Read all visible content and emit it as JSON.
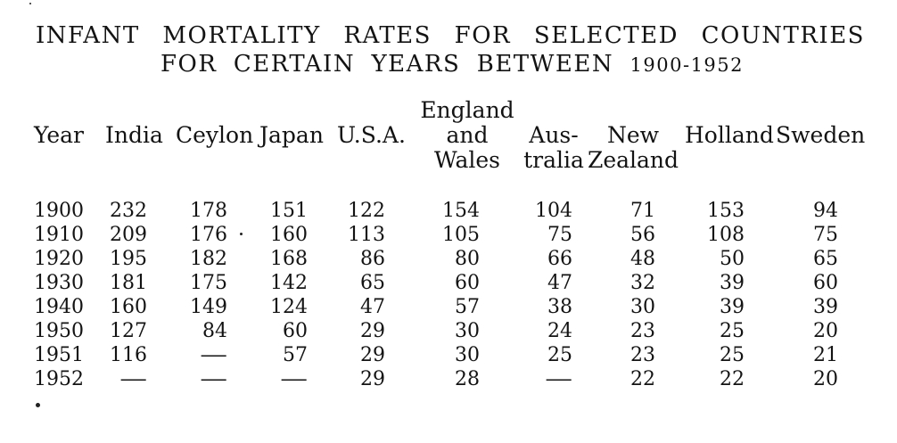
{
  "document": {
    "title_line1": "INFANT MORTALITY RATES FOR SELECTED COUNTRIES",
    "title_line2": "FOR CERTAIN YEARS BETWEEN",
    "title_years": "1900-1952"
  },
  "table": {
    "columns": [
      {
        "lines": [
          "Year"
        ]
      },
      {
        "lines": [
          "India"
        ]
      },
      {
        "lines": [
          "Ceylon"
        ]
      },
      {
        "lines": [
          "Japan"
        ]
      },
      {
        "lines": [
          "U.S.A."
        ]
      },
      {
        "lines": [
          "England",
          "and",
          "Wales"
        ]
      },
      {
        "lines": [
          "Aus-",
          "tralia"
        ]
      },
      {
        "lines": [
          "New",
          "Zealand"
        ]
      },
      {
        "lines": [
          "Holland"
        ]
      },
      {
        "lines": [
          "Sweden"
        ]
      }
    ],
    "rows": [
      [
        "1900",
        "232",
        "178",
        "151",
        "122",
        "154",
        "104",
        "71",
        "153",
        "94"
      ],
      [
        "1910",
        "209",
        "176",
        "160",
        "113",
        "105",
        "75",
        "56",
        "108",
        "75"
      ],
      [
        "1920",
        "195",
        "182",
        "168",
        "86",
        "80",
        "66",
        "48",
        "50",
        "65"
      ],
      [
        "1930",
        "181",
        "175",
        "142",
        "65",
        "60",
        "47",
        "32",
        "39",
        "60"
      ],
      [
        "1940",
        "160",
        "149",
        "124",
        "47",
        "57",
        "38",
        "30",
        "39",
        "39"
      ],
      [
        "1950",
        "127",
        "84",
        "60",
        "29",
        "30",
        "24",
        "23",
        "25",
        "20"
      ],
      [
        "1951",
        "116",
        "—",
        "57",
        "29",
        "30",
        "25",
        "23",
        "25",
        "21"
      ],
      [
        "1952",
        "—",
        "—",
        "—",
        "29",
        "28",
        "—",
        "22",
        "22",
        "20"
      ]
    ]
  }
}
